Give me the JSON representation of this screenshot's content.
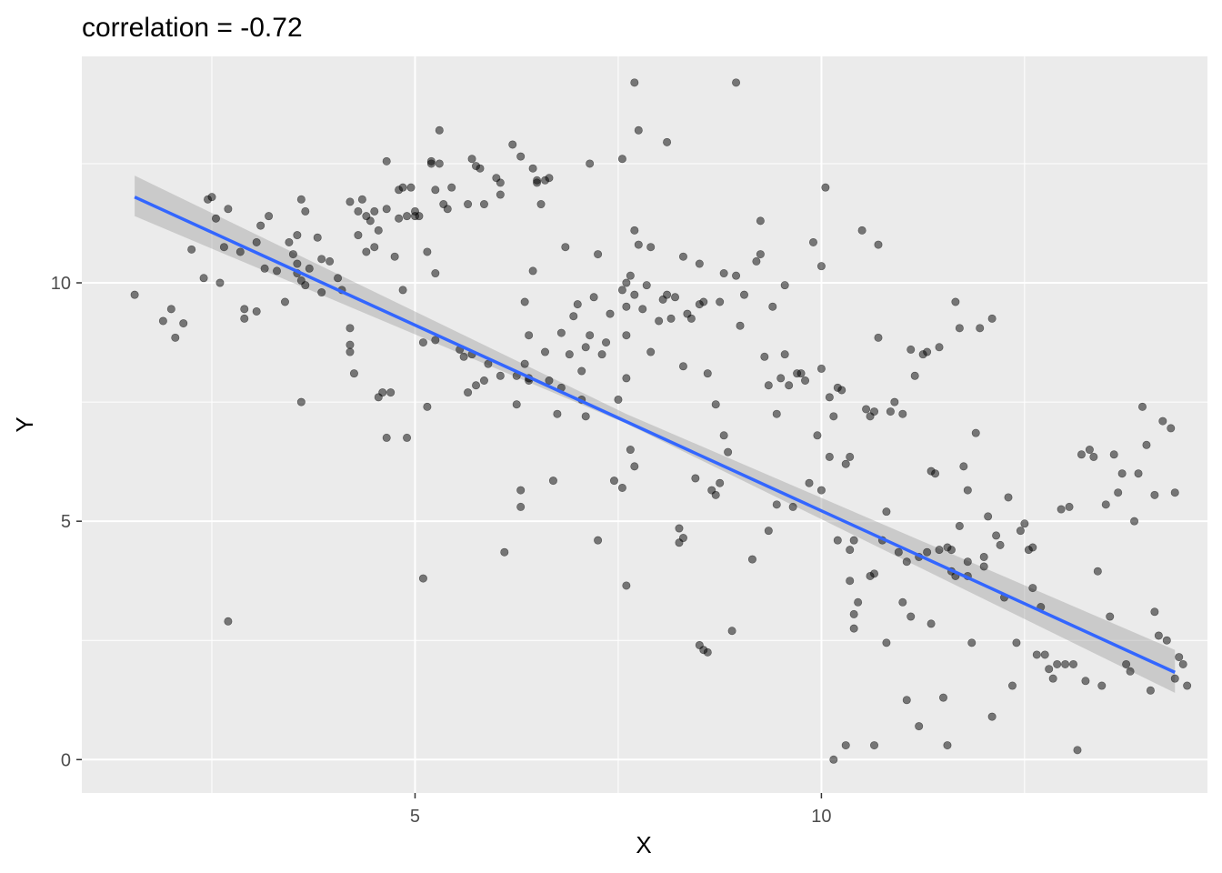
{
  "chart_data": {
    "type": "scatter",
    "title": "correlation =  -0.72",
    "xlabel": "X",
    "ylabel": "Y",
    "xlim": [
      0.9,
      14.75
    ],
    "ylim": [
      -0.7,
      14.75
    ],
    "x_ticks": [
      5,
      10
    ],
    "x_tick_labels": [
      "5",
      "10"
    ],
    "x_minor_ticks": [
      2.5,
      7.5,
      12.5
    ],
    "y_ticks": [
      0,
      5,
      10
    ],
    "y_tick_labels": [
      "0",
      "5",
      "10"
    ],
    "y_minor_ticks": [
      2.5,
      7.5,
      12.5
    ],
    "grid": true,
    "point_color": "#000000",
    "point_alpha": 0.5,
    "line_color": "#3366ff",
    "band_color": "#999999",
    "panel_background": "#ebebeb",
    "regression": {
      "x": [
        1.55,
        14.35
      ],
      "y": [
        11.8,
        1.83
      ],
      "ci_lower_start": 11.4,
      "ci_upper_start": 12.25,
      "ci_lower_mid": 7.05,
      "ci_upper_mid": 7.25,
      "ci_lower_end": 1.4,
      "ci_upper_end": 2.3,
      "mid_x": 7.6
    },
    "points": [
      [
        1.55,
        9.75
      ],
      [
        1.9,
        9.2
      ],
      [
        2.0,
        9.45
      ],
      [
        2.05,
        8.85
      ],
      [
        2.15,
        9.15
      ],
      [
        2.25,
        10.7
      ],
      [
        2.4,
        10.1
      ],
      [
        2.45,
        11.75
      ],
      [
        2.5,
        11.8
      ],
      [
        2.55,
        11.35
      ],
      [
        2.6,
        10.0
      ],
      [
        2.65,
        10.75
      ],
      [
        2.7,
        11.55
      ],
      [
        2.7,
        2.9
      ],
      [
        2.85,
        10.65
      ],
      [
        2.9,
        9.45
      ],
      [
        2.9,
        9.25
      ],
      [
        3.05,
        9.4
      ],
      [
        3.05,
        10.85
      ],
      [
        3.1,
        11.2
      ],
      [
        3.15,
        10.3
      ],
      [
        3.2,
        11.4
      ],
      [
        3.3,
        10.25
      ],
      [
        3.4,
        9.6
      ],
      [
        3.45,
        10.85
      ],
      [
        3.5,
        10.6
      ],
      [
        3.55,
        11.0
      ],
      [
        3.55,
        10.4
      ],
      [
        3.55,
        10.2
      ],
      [
        3.6,
        7.5
      ],
      [
        3.6,
        10.05
      ],
      [
        3.6,
        11.75
      ],
      [
        3.65,
        9.95
      ],
      [
        3.65,
        11.5
      ],
      [
        3.7,
        10.3
      ],
      [
        3.8,
        10.95
      ],
      [
        3.85,
        10.5
      ],
      [
        3.85,
        9.8
      ],
      [
        3.95,
        10.45
      ],
      [
        4.05,
        10.1
      ],
      [
        4.1,
        9.85
      ],
      [
        4.2,
        11.7
      ],
      [
        4.2,
        8.7
      ],
      [
        4.2,
        8.55
      ],
      [
        4.2,
        9.05
      ],
      [
        4.25,
        8.1
      ],
      [
        4.3,
        11.0
      ],
      [
        4.3,
        11.5
      ],
      [
        4.35,
        11.75
      ],
      [
        4.4,
        11.4
      ],
      [
        4.4,
        10.65
      ],
      [
        4.45,
        11.3
      ],
      [
        4.5,
        10.75
      ],
      [
        4.5,
        11.5
      ],
      [
        4.55,
        11.1
      ],
      [
        4.55,
        7.6
      ],
      [
        4.6,
        7.7
      ],
      [
        4.65,
        12.55
      ],
      [
        4.65,
        11.55
      ],
      [
        4.65,
        6.75
      ],
      [
        4.7,
        7.7
      ],
      [
        4.75,
        10.55
      ],
      [
        4.8,
        11.95
      ],
      [
        4.8,
        11.35
      ],
      [
        4.85,
        12.0
      ],
      [
        4.85,
        9.85
      ],
      [
        4.9,
        6.75
      ],
      [
        4.9,
        11.4
      ],
      [
        4.95,
        12.0
      ],
      [
        5.0,
        11.5
      ],
      [
        5.0,
        11.4
      ],
      [
        5.05,
        11.4
      ],
      [
        5.1,
        3.8
      ],
      [
        5.1,
        8.75
      ],
      [
        5.15,
        10.65
      ],
      [
        5.15,
        7.4
      ],
      [
        5.2,
        12.55
      ],
      [
        5.2,
        12.5
      ],
      [
        5.25,
        11.95
      ],
      [
        5.25,
        10.2
      ],
      [
        5.25,
        8.8
      ],
      [
        5.3,
        12.5
      ],
      [
        5.3,
        13.2
      ],
      [
        5.35,
        11.65
      ],
      [
        5.4,
        11.55
      ],
      [
        5.45,
        12.0
      ],
      [
        5.55,
        8.6
      ],
      [
        5.6,
        8.45
      ],
      [
        5.65,
        11.65
      ],
      [
        5.65,
        7.7
      ],
      [
        5.7,
        12.6
      ],
      [
        5.7,
        8.5
      ],
      [
        5.75,
        12.45
      ],
      [
        5.75,
        7.85
      ],
      [
        5.8,
        12.4
      ],
      [
        5.85,
        7.95
      ],
      [
        5.85,
        11.65
      ],
      [
        5.9,
        8.3
      ],
      [
        6.0,
        12.2
      ],
      [
        6.05,
        12.1
      ],
      [
        6.05,
        11.85
      ],
      [
        6.05,
        8.05
      ],
      [
        6.1,
        4.35
      ],
      [
        6.2,
        12.9
      ],
      [
        6.25,
        7.45
      ],
      [
        6.25,
        8.05
      ],
      [
        6.3,
        12.65
      ],
      [
        6.3,
        5.3
      ],
      [
        6.3,
        5.65
      ],
      [
        6.35,
        9.6
      ],
      [
        6.35,
        8.3
      ],
      [
        6.4,
        7.95
      ],
      [
        6.4,
        8.9
      ],
      [
        6.4,
        8.0
      ],
      [
        6.45,
        10.25
      ],
      [
        6.45,
        12.4
      ],
      [
        6.5,
        12.1
      ],
      [
        6.5,
        12.15
      ],
      [
        6.55,
        11.65
      ],
      [
        6.6,
        12.15
      ],
      [
        6.6,
        8.55
      ],
      [
        6.65,
        12.2
      ],
      [
        6.65,
        7.95
      ],
      [
        6.7,
        5.85
      ],
      [
        6.75,
        7.25
      ],
      [
        6.8,
        8.95
      ],
      [
        6.8,
        7.8
      ],
      [
        6.85,
        10.75
      ],
      [
        6.9,
        8.5
      ],
      [
        6.95,
        9.3
      ],
      [
        7.0,
        9.55
      ],
      [
        7.05,
        7.55
      ],
      [
        7.05,
        8.15
      ],
      [
        7.1,
        7.2
      ],
      [
        7.1,
        8.65
      ],
      [
        7.15,
        12.5
      ],
      [
        7.15,
        8.9
      ],
      [
        7.2,
        9.7
      ],
      [
        7.25,
        4.6
      ],
      [
        7.25,
        10.6
      ],
      [
        7.3,
        8.5
      ],
      [
        7.35,
        8.75
      ],
      [
        7.4,
        9.35
      ],
      [
        7.45,
        5.85
      ],
      [
        7.5,
        7.55
      ],
      [
        7.55,
        5.7
      ],
      [
        7.55,
        12.6
      ],
      [
        7.55,
        9.85
      ],
      [
        7.6,
        3.65
      ],
      [
        7.6,
        8.0
      ],
      [
        7.6,
        8.9
      ],
      [
        7.6,
        9.5
      ],
      [
        7.6,
        10.0
      ],
      [
        7.65,
        6.5
      ],
      [
        7.65,
        10.15
      ],
      [
        7.7,
        14.2
      ],
      [
        7.7,
        11.1
      ],
      [
        7.7,
        6.15
      ],
      [
        7.7,
        9.75
      ],
      [
        7.75,
        10.8
      ],
      [
        7.75,
        13.2
      ],
      [
        7.8,
        9.45
      ],
      [
        7.85,
        9.95
      ],
      [
        7.9,
        8.55
      ],
      [
        7.9,
        10.75
      ],
      [
        8.0,
        9.2
      ],
      [
        8.05,
        9.65
      ],
      [
        8.1,
        12.95
      ],
      [
        8.1,
        9.75
      ],
      [
        8.15,
        9.25
      ],
      [
        8.2,
        9.7
      ],
      [
        8.25,
        4.85
      ],
      [
        8.25,
        4.55
      ],
      [
        8.3,
        10.55
      ],
      [
        8.3,
        4.65
      ],
      [
        8.3,
        8.25
      ],
      [
        8.35,
        9.35
      ],
      [
        8.4,
        9.25
      ],
      [
        8.45,
        5.9
      ],
      [
        8.5,
        2.4
      ],
      [
        8.5,
        9.55
      ],
      [
        8.5,
        10.4
      ],
      [
        8.55,
        2.3
      ],
      [
        8.55,
        9.6
      ],
      [
        8.6,
        8.1
      ],
      [
        8.6,
        2.25
      ],
      [
        8.65,
        5.65
      ],
      [
        8.7,
        5.55
      ],
      [
        8.7,
        7.45
      ],
      [
        8.75,
        5.8
      ],
      [
        8.75,
        9.6
      ],
      [
        8.8,
        10.2
      ],
      [
        8.8,
        6.8
      ],
      [
        8.85,
        6.45
      ],
      [
        8.9,
        2.7
      ],
      [
        8.95,
        10.15
      ],
      [
        8.95,
        14.2
      ],
      [
        9.0,
        9.1
      ],
      [
        9.05,
        9.75
      ],
      [
        9.15,
        4.2
      ],
      [
        9.2,
        10.45
      ],
      [
        9.25,
        10.6
      ],
      [
        9.25,
        11.3
      ],
      [
        9.3,
        8.45
      ],
      [
        9.35,
        4.8
      ],
      [
        9.35,
        7.85
      ],
      [
        9.4,
        9.5
      ],
      [
        9.45,
        7.25
      ],
      [
        9.45,
        5.35
      ],
      [
        9.5,
        8.0
      ],
      [
        9.55,
        9.95
      ],
      [
        9.55,
        8.5
      ],
      [
        9.6,
        7.85
      ],
      [
        9.65,
        5.3
      ],
      [
        9.7,
        8.1
      ],
      [
        9.75,
        8.1
      ],
      [
        9.8,
        7.95
      ],
      [
        9.85,
        5.8
      ],
      [
        9.9,
        10.85
      ],
      [
        9.95,
        6.8
      ],
      [
        10.0,
        8.2
      ],
      [
        10.0,
        10.35
      ],
      [
        10.0,
        5.65
      ],
      [
        10.05,
        12.0
      ],
      [
        10.1,
        6.35
      ],
      [
        10.1,
        7.6
      ],
      [
        10.15,
        0.0
      ],
      [
        10.15,
        7.2
      ],
      [
        10.2,
        7.8
      ],
      [
        10.2,
        4.6
      ],
      [
        10.25,
        7.75
      ],
      [
        10.3,
        6.2
      ],
      [
        10.3,
        0.3
      ],
      [
        10.35,
        3.75
      ],
      [
        10.35,
        6.35
      ],
      [
        10.35,
        4.4
      ],
      [
        10.4,
        2.75
      ],
      [
        10.4,
        3.05
      ],
      [
        10.4,
        4.6
      ],
      [
        10.45,
        3.3
      ],
      [
        10.5,
        11.1
      ],
      [
        10.55,
        7.35
      ],
      [
        10.6,
        7.2
      ],
      [
        10.6,
        3.85
      ],
      [
        10.65,
        3.9
      ],
      [
        10.65,
        0.3
      ],
      [
        10.65,
        7.3
      ],
      [
        10.7,
        10.8
      ],
      [
        10.7,
        8.85
      ],
      [
        10.75,
        4.6
      ],
      [
        10.8,
        5.2
      ],
      [
        10.8,
        2.45
      ],
      [
        10.85,
        7.3
      ],
      [
        10.9,
        7.5
      ],
      [
        10.95,
        4.35
      ],
      [
        11.0,
        7.25
      ],
      [
        11.0,
        3.3
      ],
      [
        11.05,
        1.25
      ],
      [
        11.05,
        4.15
      ],
      [
        11.1,
        3.0
      ],
      [
        11.1,
        8.6
      ],
      [
        11.15,
        8.05
      ],
      [
        11.2,
        0.7
      ],
      [
        11.2,
        4.25
      ],
      [
        11.25,
        8.5
      ],
      [
        11.3,
        8.55
      ],
      [
        11.3,
        4.35
      ],
      [
        11.35,
        6.05
      ],
      [
        11.35,
        2.85
      ],
      [
        11.4,
        6.0
      ],
      [
        11.45,
        4.4
      ],
      [
        11.45,
        8.65
      ],
      [
        11.5,
        1.3
      ],
      [
        11.55,
        0.3
      ],
      [
        11.55,
        4.45
      ],
      [
        11.6,
        4.4
      ],
      [
        11.6,
        3.95
      ],
      [
        11.65,
        9.6
      ],
      [
        11.65,
        3.85
      ],
      [
        11.7,
        9.05
      ],
      [
        11.7,
        4.9
      ],
      [
        11.75,
        6.15
      ],
      [
        11.8,
        3.85
      ],
      [
        11.8,
        4.15
      ],
      [
        11.8,
        5.65
      ],
      [
        11.85,
        2.45
      ],
      [
        11.9,
        6.85
      ],
      [
        11.95,
        9.05
      ],
      [
        12.0,
        4.05
      ],
      [
        12.0,
        4.25
      ],
      [
        12.05,
        5.1
      ],
      [
        12.1,
        0.9
      ],
      [
        12.1,
        9.25
      ],
      [
        12.15,
        4.7
      ],
      [
        12.2,
        4.5
      ],
      [
        12.25,
        3.4
      ],
      [
        12.3,
        5.5
      ],
      [
        12.35,
        1.55
      ],
      [
        12.4,
        2.45
      ],
      [
        12.45,
        4.8
      ],
      [
        12.5,
        4.95
      ],
      [
        12.55,
        4.4
      ],
      [
        12.6,
        4.45
      ],
      [
        12.6,
        3.6
      ],
      [
        12.65,
        2.2
      ],
      [
        12.7,
        3.2
      ],
      [
        12.75,
        2.2
      ],
      [
        12.8,
        1.9
      ],
      [
        12.85,
        1.7
      ],
      [
        12.9,
        2.0
      ],
      [
        12.95,
        5.25
      ],
      [
        13.0,
        2.0
      ],
      [
        13.05,
        5.3
      ],
      [
        13.1,
        2.0
      ],
      [
        13.15,
        0.2
      ],
      [
        13.2,
        6.4
      ],
      [
        13.25,
        1.65
      ],
      [
        13.3,
        6.5
      ],
      [
        13.35,
        6.35
      ],
      [
        13.4,
        3.95
      ],
      [
        13.45,
        1.55
      ],
      [
        13.5,
        5.35
      ],
      [
        13.55,
        3.0
      ],
      [
        13.6,
        6.4
      ],
      [
        13.65,
        5.6
      ],
      [
        13.7,
        6.0
      ],
      [
        13.75,
        2.0
      ],
      [
        13.8,
        1.85
      ],
      [
        13.85,
        5.0
      ],
      [
        13.9,
        6.0
      ],
      [
        13.95,
        7.4
      ],
      [
        14.0,
        6.6
      ],
      [
        14.05,
        1.45
      ],
      [
        14.1,
        5.55
      ],
      [
        14.1,
        3.1
      ],
      [
        14.15,
        2.6
      ],
      [
        14.2,
        7.1
      ],
      [
        14.25,
        2.5
      ],
      [
        14.3,
        6.95
      ],
      [
        14.35,
        1.7
      ],
      [
        14.35,
        5.6
      ],
      [
        14.4,
        2.15
      ],
      [
        14.45,
        2.0
      ],
      [
        14.5,
        1.55
      ]
    ]
  }
}
